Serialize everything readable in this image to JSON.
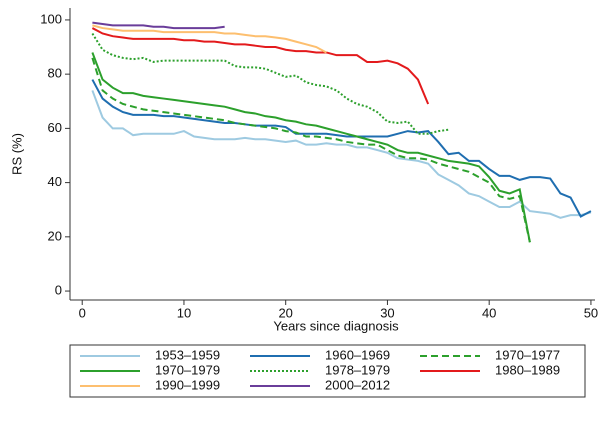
{
  "chart_data": {
    "type": "line",
    "x_label": "Years since diagnosis",
    "y_label": "RS (%)",
    "xlim": [
      -1.2,
      50.4
    ],
    "ylim": [
      -3.3,
      104.4
    ],
    "xticks": [
      0,
      10,
      20,
      30,
      40,
      50
    ],
    "yticks": [
      0,
      20,
      40,
      60,
      80,
      100
    ],
    "legend": "bottom",
    "series": [
      {
        "name": "1953–1959",
        "color": "#9ecae1",
        "dash": "none",
        "x": [
          1,
          2,
          3,
          4,
          5,
          6,
          7,
          8,
          9,
          10,
          11,
          12,
          13,
          14,
          15,
          16,
          17,
          18,
          19,
          20,
          21,
          22,
          23,
          24,
          25,
          26,
          27,
          28,
          29,
          30,
          31,
          32,
          33,
          34,
          35,
          36,
          37,
          38,
          39,
          40,
          41,
          42,
          43,
          44,
          45,
          46,
          47,
          48,
          49,
          50
        ],
        "values": [
          74,
          64,
          60,
          60,
          57.5,
          58,
          58,
          58,
          58,
          59,
          57,
          56.5,
          56,
          56,
          56,
          56.5,
          56,
          56,
          55.5,
          55,
          55.5,
          54,
          54,
          54.5,
          54,
          54,
          53,
          53,
          52,
          51,
          49,
          48.5,
          48,
          47,
          43,
          41,
          39,
          36,
          35,
          33,
          31,
          31,
          33,
          29.5,
          29,
          28.5,
          27,
          28,
          28,
          29
        ]
      },
      {
        "name": "1960–1969",
        "color": "#1f6eb0",
        "dash": "none",
        "x": [
          1,
          2,
          3,
          4,
          5,
          6,
          7,
          8,
          9,
          10,
          11,
          12,
          13,
          14,
          15,
          16,
          17,
          18,
          19,
          20,
          21,
          22,
          23,
          24,
          25,
          26,
          27,
          28,
          29,
          30,
          31,
          32,
          33,
          34,
          35,
          36,
          37,
          38,
          39,
          40,
          41,
          42,
          43,
          44,
          45,
          46,
          47,
          48,
          49,
          50
        ],
        "values": [
          78,
          71,
          68,
          66,
          65,
          65,
          65,
          64.5,
          64.5,
          64,
          63.5,
          63,
          62.5,
          62,
          62,
          61.5,
          61,
          61,
          61,
          60.5,
          58,
          58,
          58,
          58,
          57.5,
          57,
          57,
          57,
          57,
          57,
          58,
          59,
          58.5,
          59,
          55,
          50.5,
          51,
          48,
          48,
          45,
          42.5,
          42.5,
          41,
          42,
          42,
          41.5,
          36,
          34.5,
          27.5,
          29.5
        ]
      },
      {
        "name": "1970–1977",
        "color": "#2ca02c",
        "dash": "7,4",
        "x": [
          1,
          2,
          3,
          4,
          5,
          6,
          7,
          8,
          9,
          10,
          11,
          12,
          13,
          14,
          15,
          16,
          17,
          18,
          19,
          20,
          21,
          22,
          23,
          24,
          25,
          26,
          27,
          28,
          29,
          30,
          31,
          32,
          33,
          34,
          35,
          36,
          37,
          38,
          39,
          40,
          41,
          42,
          43,
          44
        ],
        "values": [
          86,
          74,
          71,
          69,
          68,
          67,
          66.5,
          66,
          65.5,
          65,
          64.5,
          64,
          63.5,
          63,
          62,
          61.5,
          61,
          60.5,
          60,
          59,
          58.5,
          57,
          57,
          56.5,
          56,
          55,
          54.5,
          54,
          54,
          52,
          50,
          49,
          49,
          48.5,
          47,
          46,
          45,
          44,
          42,
          40,
          35,
          34,
          35,
          18
        ]
      },
      {
        "name": "1970–1979",
        "color": "#2ca02c",
        "dash": "none",
        "x": [
          1,
          2,
          3,
          4,
          5,
          6,
          7,
          8,
          9,
          10,
          11,
          12,
          13,
          14,
          15,
          16,
          17,
          18,
          19,
          20,
          21,
          22,
          23,
          24,
          25,
          26,
          27,
          28,
          29,
          30,
          31,
          32,
          33,
          34,
          35,
          36,
          37,
          38,
          39,
          40,
          41,
          42,
          43,
          44
        ],
        "values": [
          88,
          78,
          75,
          73,
          73,
          72,
          71.5,
          71,
          70.5,
          70,
          69.5,
          69,
          68.5,
          68,
          67,
          66,
          65.5,
          64.5,
          64,
          63,
          62.5,
          61.5,
          61,
          60,
          59,
          58,
          57,
          56,
          55,
          54,
          52,
          51,
          51,
          50,
          49,
          48,
          47.5,
          47,
          46,
          42,
          37,
          36,
          37.5,
          18
        ]
      },
      {
        "name": "1978–1979",
        "color": "#2ca02c",
        "dash": "2,2",
        "x": [
          1,
          2,
          3,
          4,
          5,
          6,
          7,
          8,
          9,
          10,
          11,
          12,
          13,
          14,
          15,
          16,
          17,
          18,
          19,
          20,
          21,
          22,
          23,
          24,
          25,
          26,
          27,
          28,
          29,
          30,
          31,
          32,
          33,
          34,
          35,
          36
        ],
        "values": [
          95,
          89,
          87,
          86,
          85.5,
          86,
          84.5,
          85,
          85,
          85,
          85,
          85,
          85,
          85,
          83,
          82.5,
          82.5,
          82,
          80.5,
          79,
          79.5,
          77,
          76,
          75.5,
          74,
          71,
          69,
          68,
          66,
          62.5,
          62,
          62.5,
          58,
          58,
          59,
          59.5
        ]
      },
      {
        "name": "1980–1989",
        "color": "#e31a1c",
        "dash": "none",
        "x": [
          1,
          2,
          3,
          4,
          5,
          6,
          7,
          8,
          9,
          10,
          11,
          12,
          13,
          14,
          15,
          16,
          17,
          18,
          19,
          20,
          21,
          22,
          23,
          24,
          25,
          26,
          27,
          28,
          29,
          30,
          31,
          32,
          33,
          34
        ],
        "values": [
          97,
          95,
          94,
          93.5,
          93,
          93,
          93,
          93,
          93,
          92.5,
          92.5,
          92,
          92,
          91.5,
          91,
          91,
          90.5,
          90,
          90,
          89,
          88.5,
          88.5,
          88,
          88,
          87,
          87,
          87,
          84.5,
          84.5,
          85,
          84,
          82,
          78,
          69
        ]
      },
      {
        "name": "1990–1999",
        "color": "#fdbf6f",
        "dash": "none",
        "x": [
          1,
          2,
          3,
          4,
          5,
          6,
          7,
          8,
          9,
          10,
          11,
          12,
          13,
          14,
          15,
          16,
          17,
          18,
          19,
          20,
          21,
          22,
          23,
          24
        ],
        "values": [
          98,
          97,
          96.5,
          96,
          96,
          96,
          96,
          95.5,
          95.5,
          95.5,
          95.5,
          95.5,
          95.5,
          95,
          95,
          94.5,
          94,
          94,
          93.5,
          93,
          92,
          91,
          90,
          88
        ]
      },
      {
        "name": "2000–2012",
        "color": "#6a3d9a",
        "dash": "none",
        "x": [
          1,
          2,
          3,
          4,
          5,
          6,
          7,
          8,
          9,
          10,
          11,
          12,
          13,
          14
        ],
        "values": [
          99,
          98.5,
          98,
          98,
          98,
          98,
          97.5,
          97.5,
          97,
          97,
          97,
          97,
          97,
          97.5
        ]
      }
    ]
  }
}
